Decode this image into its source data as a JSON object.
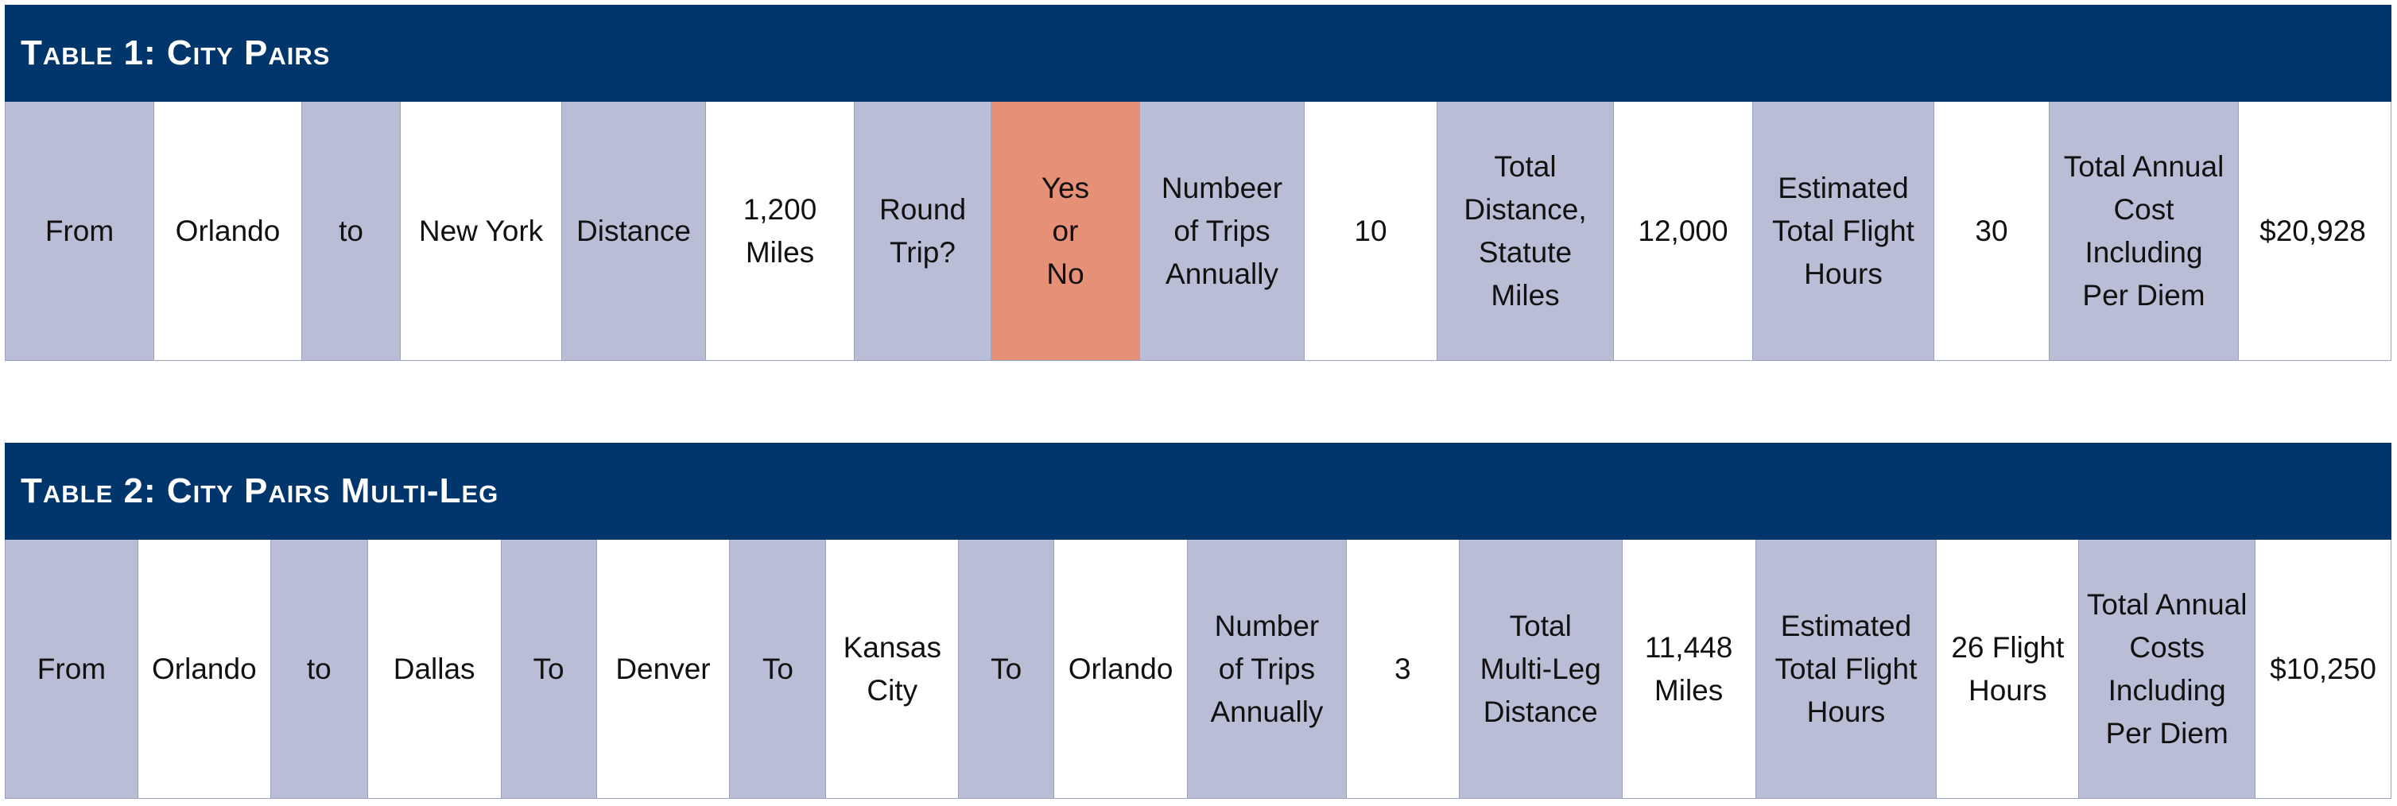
{
  "table1": {
    "title": "Table 1:  City Pairs",
    "cells": [
      {
        "text": "From",
        "kind": "label"
      },
      {
        "text": "Orlando",
        "kind": "value"
      },
      {
        "text": "to",
        "kind": "label"
      },
      {
        "text": "New York",
        "kind": "value"
      },
      {
        "text": "Distance",
        "kind": "label"
      },
      {
        "text": "1,200\nMiles",
        "kind": "value"
      },
      {
        "text": "Round\nTrip?",
        "kind": "label"
      },
      {
        "text": "Yes\nor\nNo",
        "kind": "highlight"
      },
      {
        "text": "Numbeer\nof Trips\nAnnually",
        "kind": "label"
      },
      {
        "text": "10",
        "kind": "value"
      },
      {
        "text": "Total\nDistance,\nStatute\nMiles",
        "kind": "label"
      },
      {
        "text": "12,000",
        "kind": "value"
      },
      {
        "text": "Estimated\nTotal Flight\nHours",
        "kind": "label"
      },
      {
        "text": "30",
        "kind": "value"
      },
      {
        "text": "Total Annual\nCost\nIncluding\nPer Diem",
        "kind": "label"
      },
      {
        "text": "$20,928",
        "kind": "value"
      }
    ]
  },
  "table2": {
    "title": "Table 2:  City Pairs Multi-Leg",
    "cells": [
      {
        "text": "From",
        "kind": "label"
      },
      {
        "text": "Orlando",
        "kind": "value"
      },
      {
        "text": "to",
        "kind": "label"
      },
      {
        "text": "Dallas",
        "kind": "value"
      },
      {
        "text": "To",
        "kind": "label"
      },
      {
        "text": "Denver",
        "kind": "value"
      },
      {
        "text": "To",
        "kind": "label"
      },
      {
        "text": "Kansas\nCity",
        "kind": "value"
      },
      {
        "text": "To",
        "kind": "label"
      },
      {
        "text": "Orlando",
        "kind": "value"
      },
      {
        "text": "Number\nof Trips\nAnnually",
        "kind": "label"
      },
      {
        "text": "3",
        "kind": "value"
      },
      {
        "text": "Total\nMulti-Leg\nDistance",
        "kind": "label"
      },
      {
        "text": "11,448\nMiles",
        "kind": "value"
      },
      {
        "text": "Estimated\nTotal Flight\nHours",
        "kind": "label"
      },
      {
        "text": "26 Flight\nHours",
        "kind": "value"
      },
      {
        "text": "Total Annual\nCosts\nIncluding\nPer Diem",
        "kind": "label"
      },
      {
        "text": "$10,250",
        "kind": "value"
      }
    ]
  },
  "colors": {
    "title_bar": "#00366b",
    "label_cell": "#b9bed6",
    "value_cell": "#ffffff",
    "highlight_cell": "#e59077"
  }
}
